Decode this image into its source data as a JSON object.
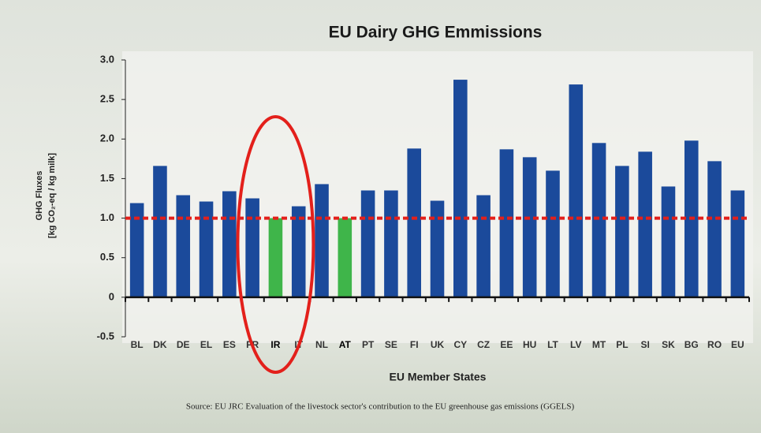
{
  "chart_data": {
    "type": "bar",
    "title": "EU Dairy GHG Emmissions",
    "y_label_lines": [
      "GHG Fluxes",
      "[kg CO₂-eq / kg milk]"
    ],
    "x_label": "EU Member States",
    "source": "Source: EU JRC  Evaluation of the livestock sector's contribution to the EU greenhouse gas emissions (GGELS)",
    "categories": [
      "BL",
      "DK",
      "DE",
      "EL",
      "ES",
      "FR",
      "IR",
      "IT",
      "NL",
      "AT",
      "PT",
      "SE",
      "FI",
      "UK",
      "CY",
      "CZ",
      "EE",
      "HU",
      "LT",
      "LV",
      "MT",
      "PL",
      "SI",
      "SK",
      "BG",
      "RO",
      "EU"
    ],
    "values": [
      1.19,
      1.66,
      1.29,
      1.21,
      1.34,
      1.25,
      1.0,
      1.15,
      1.43,
      1.0,
      1.35,
      1.35,
      1.88,
      1.22,
      2.75,
      1.29,
      1.87,
      1.77,
      1.6,
      2.69,
      1.95,
      1.66,
      1.84,
      1.4,
      1.98,
      1.72,
      1.35
    ],
    "colors": [
      "#1b4a9b",
      "#1b4a9b",
      "#1b4a9b",
      "#1b4a9b",
      "#1b4a9b",
      "#1b4a9b",
      "#3fb54a",
      "#1b4a9b",
      "#1b4a9b",
      "#3fb54a",
      "#1b4a9b",
      "#1b4a9b",
      "#1b4a9b",
      "#1b4a9b",
      "#1b4a9b",
      "#1b4a9b",
      "#1b4a9b",
      "#1b4a9b",
      "#1b4a9b",
      "#1b4a9b",
      "#1b4a9b",
      "#1b4a9b",
      "#1b4a9b",
      "#1b4a9b",
      "#1b4a9b",
      "#1b4a9b",
      "#1b4a9b"
    ],
    "reference_line": 1.0,
    "reference_color": "#e3201b",
    "ylim": [
      -0.5,
      3.0
    ],
    "yticks": [
      -0.5,
      0,
      0.5,
      {
        "value": 1,
        "label": "1.0"
      },
      1.5,
      {
        "value": 2,
        "label": "2.0"
      },
      2.5,
      {
        "value": 3,
        "label": "3.0"
      }
    ],
    "grid": false
  }
}
